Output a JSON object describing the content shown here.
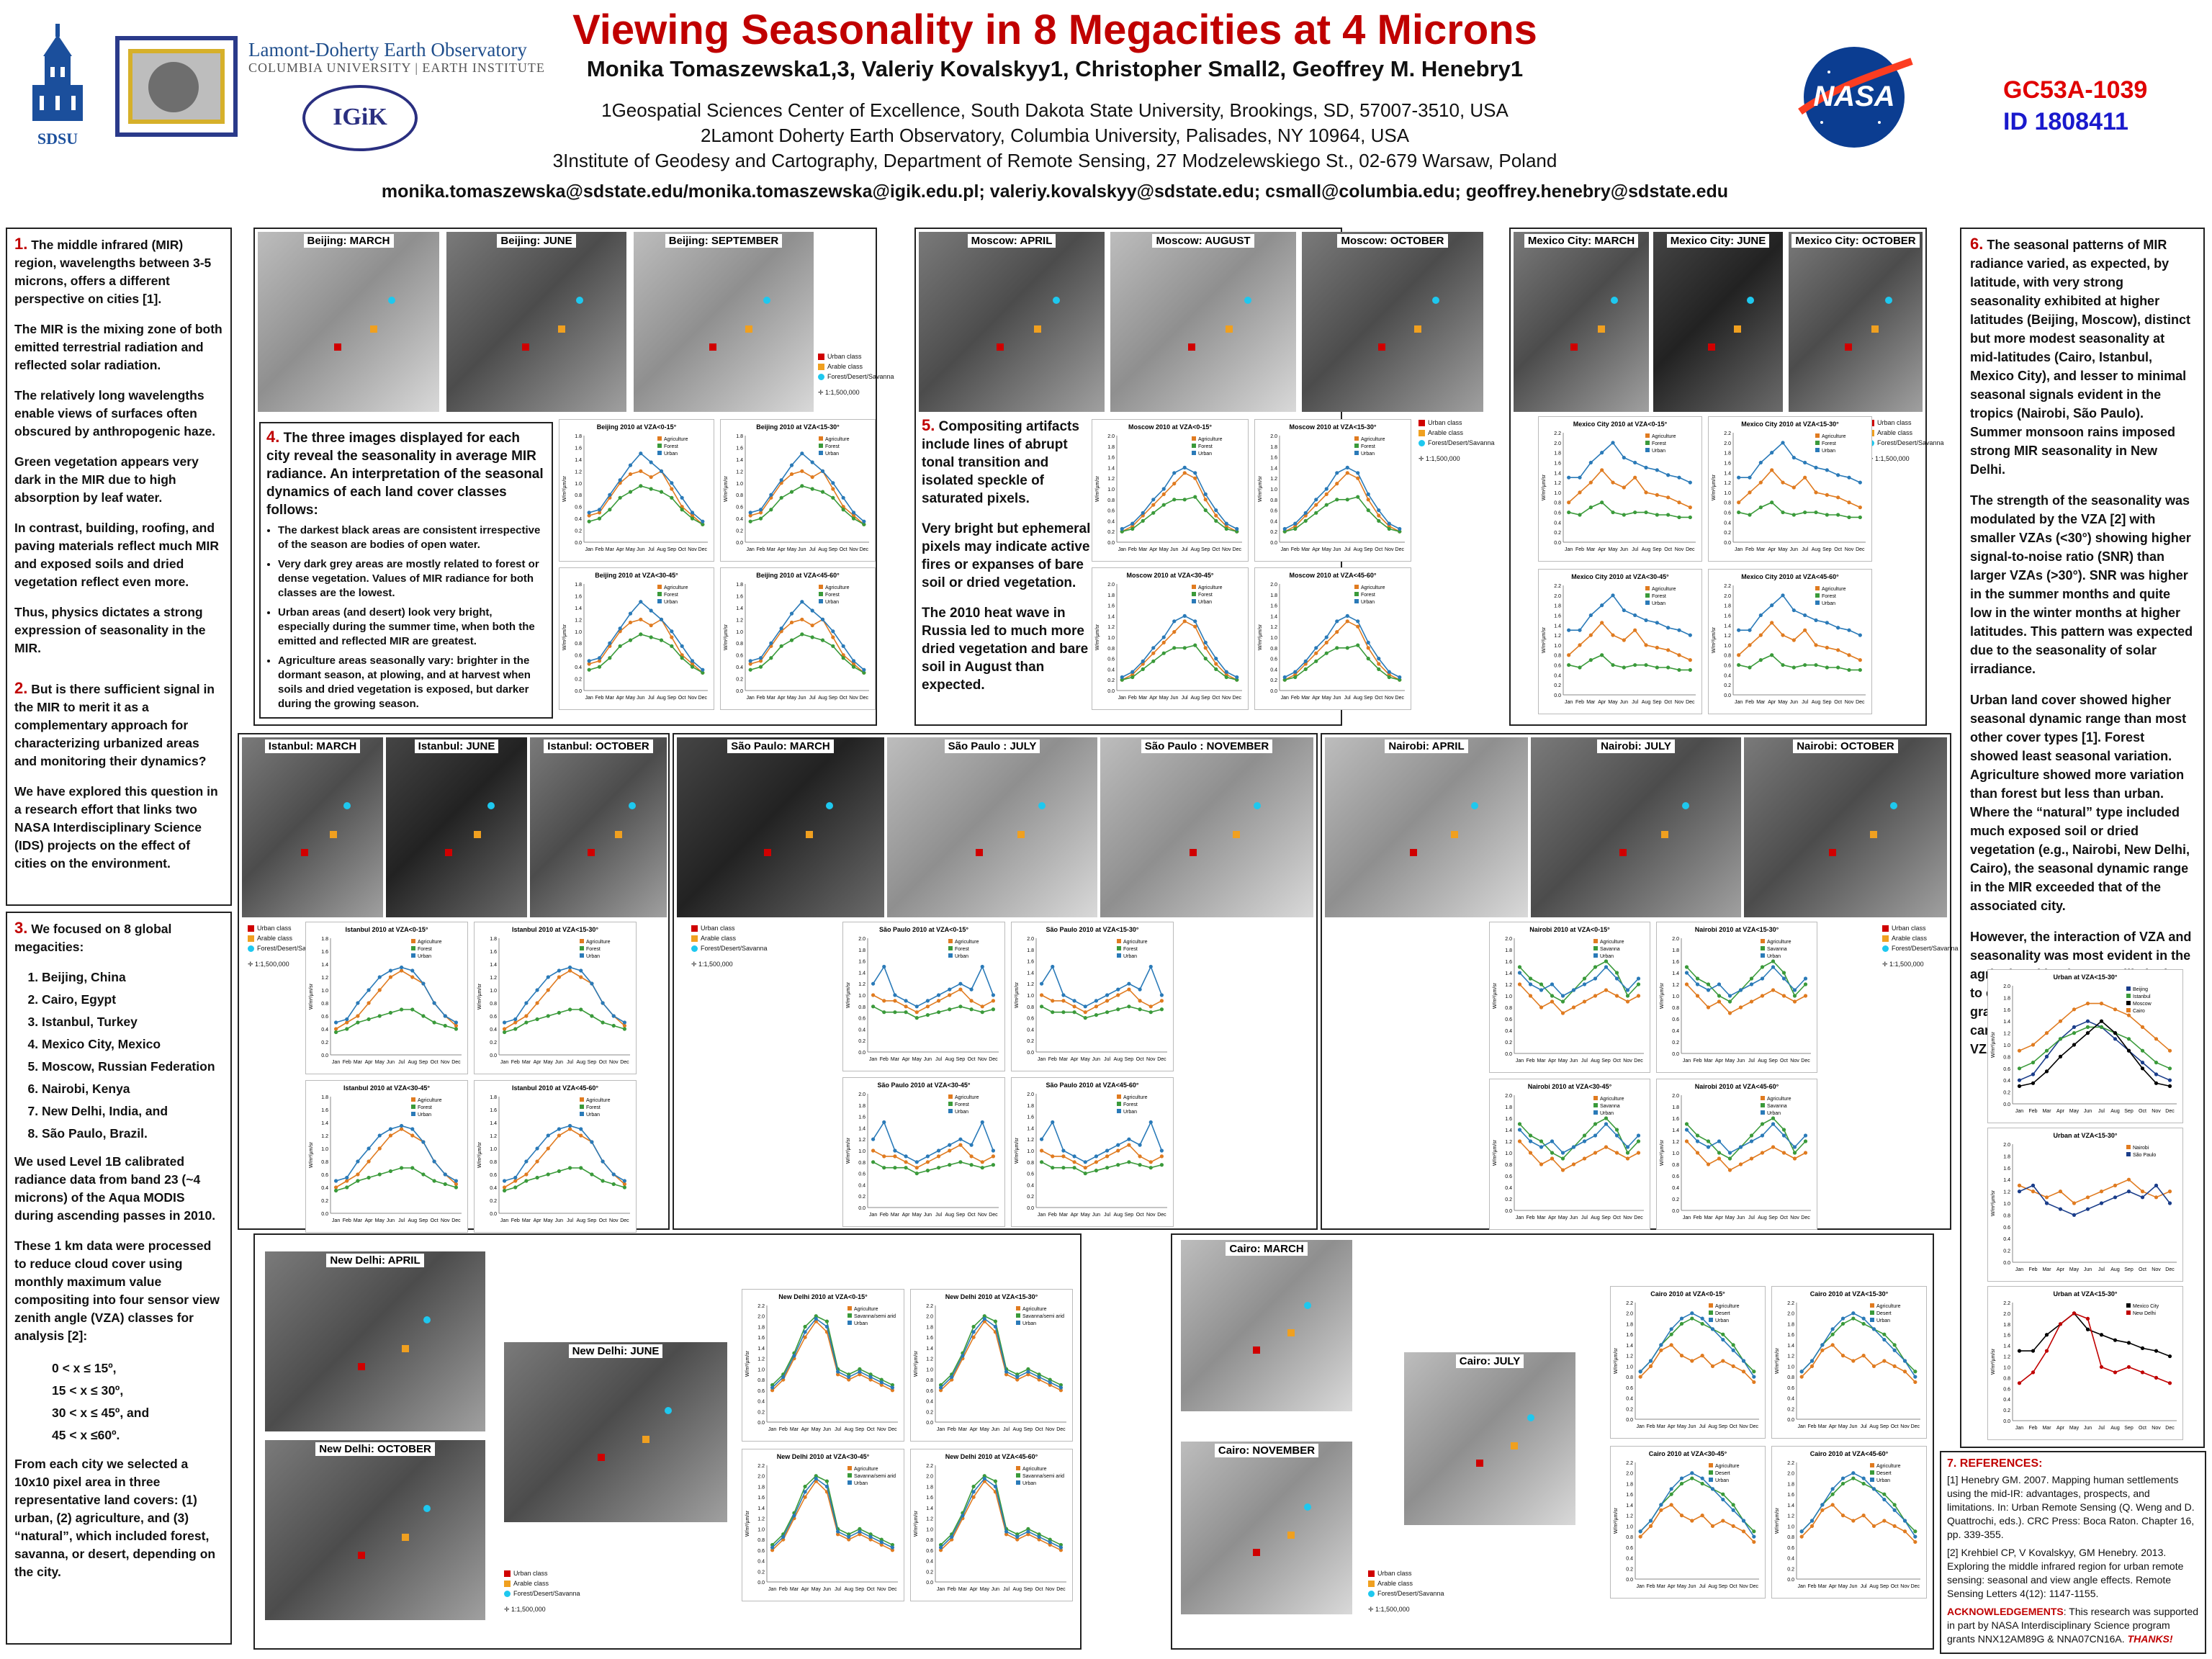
{
  "header": {
    "title": "Viewing Seasonality in 8 Megacities at 4 Microns",
    "authors": "Monika Tomaszewska1,3, Valeriy Kovalskyy1, Christopher Small2, Geoffrey M. Henebry1",
    "affil1": "1Geospatial Sciences Center of Excellence, South Dakota State University, Brookings, SD, 57007-3510, USA",
    "affil2": "2Lamont Doherty Earth Observatory, Columbia University, Palisades, NY 10964, USA",
    "affil3": "3Institute of Geodesy and Cartography, Department of Remote Sensing, 27 Modzelewskiego St., 02-679 Warsaw, Poland",
    "emails": "monika.tomaszewska@sdstate.edu/monika.tomaszewska@igik.edu.pl; valeriy.kovalskyy@sdstate.edu; csmall@columbia.edu; geoffrey.henebry@sdstate.edu",
    "code": "GC53A-1039",
    "id": "ID 1808411",
    "logos": {
      "sdsu": "SDSU",
      "lamont": "Lamont-Doherty Earth Observatory",
      "columbia": "COLUMBIA UNIVERSITY | EARTH INSTITUTE",
      "igik": "IGiK",
      "nasa": "NASA"
    }
  },
  "left": {
    "s1": [
      "The middle infrared (MIR) region, wavelengths between 3-5 microns, offers a different perspective on cities [1].",
      "The MIR is the mixing zone of both emitted terrestrial radiation and reflected solar radiation.",
      "The relatively long wavelengths enable views of surfaces often obscured by anthropogenic  haze.",
      "Green vegetation appears very dark in the MIR due to high absorption  by leaf water.",
      "In contrast, building, roofing, and paving materials reflect much MIR and exposed soils and dried vegetation reflect even more.",
      "Thus, physics dictates a strong expression of seasonality in the MIR."
    ],
    "s2": [
      "But is there sufficient signal in the MIR to merit it as a complementary approach for characterizing urbanized areas and monitoring their dynamics?",
      "We have explored this question in a research effort that links two NASA Interdisciplinary  Science (IDS) projects on the effect of cities on the environment."
    ],
    "s3_intro": "We focused on 8 global megacities:",
    "cities": [
      "Beijing, China",
      "Cairo, Egypt",
      "Istanbul, Turkey",
      "Mexico City, Mexico",
      "Moscow, Russian Federation",
      "Nairobi, Kenya",
      "New Delhi, India, and",
      "São Paulo, Brazil."
    ],
    "s3_p1": "We used Level 1B calibrated radiance data from band 23 (~4 microns) of the Aqua MODIS during ascending passes in 2010.",
    "s3_p2": "These 1 km data were processed to reduce cloud cover using monthly maximum value compositing  into four sensor view zenith angle (VZA) classes for analysis  [2]:",
    "vza": [
      "0 < x ≤ 15º,",
      "15 < x ≤ 30º,",
      "30 < x ≤ 45º, and",
      "45 < x ≤60º."
    ],
    "s3_p3": "From each city we selected a 10x10 pixel area in three representative land covers: (1) urban, (2) agriculture, and (3) “natural”,  which included forest, savanna, or desert, depending on the city."
  },
  "s4": {
    "intro": "The three images displayed for each city reveal the seasonality in average MIR radiance. An interpretation of the seasonal dynamics of each land cover classes follows:",
    "bullets": [
      "The darkest black areas are consistent irrespective of the season are bodies of open water.",
      "Very dark grey areas are mostly related to forest or dense vegetation. Values of MIR radiance for both classes are the lowest.",
      "Urban areas (and desert) look very bright, especially during the summer time, when both the emitted and reflected  MIR are greatest.",
      "Agriculture areas seasonally vary: brighter in the dormant season, at plowing, and at harvest when soils and dried vegetation is exposed, but darker during the growing season."
    ]
  },
  "s5": [
    "Compositing artifacts include lines of abrupt tonal transition and isolated speckle of saturated pixels.",
    "Very bright but ephemeral pixels may indicate active fires or expanses of bare soil or dried vegetation.",
    "The 2010 heat wave in Russia led to much more dried vegetation and bare soil in August than expected."
  ],
  "s6": [
    "The seasonal patterns of MIR radiance varied, as expected, by latitude, with very strong seasonality exhibited at higher latitudes (Beijing, Moscow), distinct but more modest seasonality at mid-latitudes (Cairo, Istanbul, Mexico City), and lesser to minimal seasonal signals evident in the tropics (Nairobi, São Paulo). Summer monsoon rains imposed strong MIR seasonality in New Delhi.",
    "The strength of the seasonality was modulated by the VZA [2] with smaller VZAs (<30°) showing higher signal-to-noise ratio (SNR) than larger VZAs (>30°). SNR was higher in the summer months and quite low in the winter months at higher latitudes. This pattern was expected due to the seasonality of solar irradiance.",
    "Urban land cover showed higher seasonal dynamic range than most other cover types [1]. Forest  showed least seasonal variation. Agriculture showed more variation than forest but less than urban. Where the “natural” type included much exposed soil or dried vegetation (e.g., Nairobi, New Delhi, Cairo), the seasonal dynamic range in the MIR exceeded that of the associated city.",
    "However, the interaction of VZA and seasonality was most evident in the agricultural land covers, likely due to exposed cropland soils being gradually covered by the growing canopy when viewed at higher VZAs."
  ],
  "refs": {
    "head": "7. REFERENCES:",
    "r1": "[1] Henebry GM. 2007. Mapping human  settlements using the mid-IR: advantages, prospects, and limitations. In: Urban Remote Sensing (Q. Weng and D. Quattrochi, eds.). CRC Press: Boca Raton. Chapter 16, pp. 339-355.",
    "r2": "[2] Krehbiel CP, V Kovalskyy, GM Henebry. 2013. Exploring the middle infrared region for urban remote sensing: seasonal and view angle effects. Remote Sensing  Letters 4(12): 1147-1155.",
    "ack_head": "ACKNOWLEDGEMENTS",
    "ack": ": This research was supported in part by NASA Interdisciplinary Science program grants NNX12AM89G & NNA07CN16A.",
    "thanks": "THANKS!"
  },
  "images": {
    "beijing": [
      "Beijing: MARCH",
      "Beijing: JUNE",
      "Beijing: SEPTEMBER"
    ],
    "moscow": [
      "Moscow: APRIL",
      "Moscow: AUGUST",
      "Moscow: OCTOBER"
    ],
    "mexico": [
      "Mexico City: MARCH",
      "Mexico City: JUNE",
      "Mexico City: OCTOBER"
    ],
    "istanbul": [
      "Istanbul: MARCH",
      "Istanbul: JUNE",
      "Istanbul: OCTOBER"
    ],
    "saopaulo": [
      "São Paulo: MARCH",
      "São Paulo : JULY",
      "São Paulo : NOVEMBER"
    ],
    "nairobi": [
      "Nairobi: APRIL",
      "Nairobi: JULY",
      "Nairobi: OCTOBER"
    ],
    "delhi": [
      "New Delhi: APRIL",
      "New Delhi: JUNE",
      "New Delhi: OCTOBER"
    ],
    "cairo": [
      "Cairo: MARCH",
      "Cairo: JULY",
      "Cairo: NOVEMBER"
    ]
  },
  "map_legend": [
    "Urban class",
    "Arable class",
    "Forest/Desert/Savanna"
  ],
  "scale": "1:1,500,000",
  "colors": {
    "agriculture": "#e07b20",
    "natural": "#3a9a3a",
    "urban": "#2a7ab8",
    "red": "#c00000",
    "blue": "#1a1acc"
  },
  "chart_data": {
    "type": "line",
    "months": [
      "Jan",
      "Feb",
      "Mar",
      "Apr",
      "May",
      "Jun",
      "Jul",
      "Aug",
      "Sep",
      "Oct",
      "Nov",
      "Dec"
    ],
    "ylabel": "W/m²/µm/sr",
    "panels": {
      "beijing": {
        "titles": [
          "Beijing 2010 at VZA<0-15°",
          "Beijing 2010 at VZA<15-30°",
          "Beijing 2010 at VZA<30-45°",
          "Beijing 2010 at VZA<45-60°"
        ],
        "legend": [
          "Agriculture",
          "Forest",
          "Urban"
        ],
        "ylim": [
          0,
          1.8
        ],
        "series": [
          [
            0.45,
            0.5,
            0.75,
            1.0,
            1.15,
            1.2,
            1.1,
            1.2,
            0.9,
            0.6,
            0.45,
            0.3
          ],
          [
            0.35,
            0.4,
            0.55,
            0.75,
            0.85,
            0.95,
            0.9,
            0.85,
            0.75,
            0.55,
            0.4,
            0.3
          ],
          [
            0.5,
            0.55,
            0.8,
            1.05,
            1.3,
            1.5,
            1.35,
            1.2,
            1.0,
            0.75,
            0.5,
            0.35
          ]
        ]
      },
      "moscow": {
        "titles": [
          "Moscow 2010 at VZA<0-15°",
          "Moscow 2010 at VZA<15-30°",
          "Moscow 2010 at VZA<30-45°",
          "Moscow 2010 at VZA<45-60°"
        ],
        "legend": [
          "Agriculture",
          "Forest",
          "Urban"
        ],
        "ylim": [
          0,
          2.0
        ],
        "series": [
          [
            0.2,
            0.3,
            0.5,
            0.7,
            0.9,
            1.1,
            1.3,
            1.2,
            0.8,
            0.5,
            0.3,
            0.2
          ],
          [
            0.2,
            0.25,
            0.4,
            0.55,
            0.7,
            0.8,
            0.8,
            0.85,
            0.6,
            0.4,
            0.25,
            0.2
          ],
          [
            0.25,
            0.35,
            0.55,
            0.8,
            1.0,
            1.3,
            1.4,
            1.3,
            0.9,
            0.6,
            0.35,
            0.25
          ]
        ]
      },
      "mexico": {
        "titles": [
          "Mexico City 2010 at VZA<0-15°",
          "Mexico City 2010 at VZA<15-30°",
          "Mexico City 2010 at VZA<30-45°",
          "Mexico City 2010 at VZA<45-60°"
        ],
        "legend": [
          "Agriculture",
          "Forest",
          "Urban"
        ],
        "ylim": [
          0,
          2.2
        ],
        "series": [
          [
            0.8,
            1.0,
            1.2,
            1.45,
            1.2,
            1.1,
            1.3,
            1.0,
            0.95,
            0.9,
            0.8,
            0.7
          ],
          [
            0.6,
            0.55,
            0.7,
            0.8,
            0.6,
            0.55,
            0.6,
            0.6,
            0.55,
            0.55,
            0.5,
            0.5
          ],
          [
            1.3,
            1.3,
            1.6,
            1.8,
            2.0,
            1.7,
            1.6,
            1.5,
            1.45,
            1.35,
            1.3,
            1.2
          ]
        ]
      },
      "istanbul": {
        "titles": [
          "Istanbul 2010 at VZA<0-15°",
          "Istanbul 2010 at VZA<15-30°",
          "Istanbul 2010 at VZA<30-45°",
          "Istanbul 2010 at VZA<45-60°"
        ],
        "legend": [
          "Agriculture",
          "Forest",
          "Urban"
        ],
        "ylim": [
          0,
          1.8
        ],
        "series": [
          [
            0.4,
            0.5,
            0.6,
            0.8,
            1.0,
            1.2,
            1.3,
            1.2,
            1.1,
            0.8,
            0.6,
            0.45
          ],
          [
            0.35,
            0.4,
            0.5,
            0.55,
            0.6,
            0.65,
            0.7,
            0.7,
            0.6,
            0.5,
            0.45,
            0.4
          ],
          [
            0.5,
            0.55,
            0.8,
            1.0,
            1.2,
            1.3,
            1.35,
            1.3,
            1.1,
            0.8,
            0.6,
            0.5
          ]
        ]
      },
      "saopaulo": {
        "titles": [
          "São Paulo 2010 at VZA<0-15°",
          "São Paulo 2010 at VZA<15-30°",
          "São Paulo 2010 at VZA<30-45°",
          "São Paulo 2010 at VZA<45-60°"
        ],
        "legend": [
          "Agriculture",
          "Forest",
          "Urban"
        ],
        "ylim": [
          0,
          2.0
        ],
        "series": [
          [
            1.0,
            0.9,
            0.9,
            0.8,
            0.7,
            0.8,
            0.9,
            1.0,
            1.1,
            0.9,
            0.8,
            0.9
          ],
          [
            0.8,
            0.7,
            0.7,
            0.7,
            0.6,
            0.65,
            0.7,
            0.75,
            0.8,
            0.75,
            0.7,
            0.75
          ],
          [
            1.2,
            1.5,
            1.0,
            0.9,
            0.8,
            0.9,
            1.0,
            1.1,
            1.2,
            1.1,
            1.5,
            1.0
          ]
        ]
      },
      "nairobi": {
        "titles": [
          "Nairobi 2010 at VZA<0-15°",
          "Nairobi 2010 at VZA<15-30°",
          "Nairobi 2010 at VZA<30-45°",
          "Nairobi 2010 at VZA<45-60°"
        ],
        "legend": [
          "Agriculture",
          "Savanna",
          "Urban"
        ],
        "ylim": [
          0,
          2.0
        ],
        "series": [
          [
            1.2,
            1.0,
            0.8,
            0.9,
            0.7,
            0.8,
            0.9,
            1.0,
            1.1,
            1.0,
            0.9,
            1.0
          ],
          [
            1.5,
            1.3,
            1.2,
            1.0,
            0.9,
            1.1,
            1.3,
            1.5,
            1.6,
            1.4,
            1.0,
            1.2
          ],
          [
            1.4,
            1.2,
            1.1,
            1.2,
            1.0,
            1.1,
            1.2,
            1.3,
            1.5,
            1.3,
            1.1,
            1.3
          ]
        ]
      },
      "delhi": {
        "titles": [
          "New Delhi 2010 at VZA<0-15°",
          "New Delhi 2010 at VZA<15-30°",
          "New Delhi 2010 at VZA<30-45°",
          "New Delhi 2010 at VZA<45-60°"
        ],
        "legend": [
          "Agriculture",
          "Savanna/semi arid",
          "Urban"
        ],
        "ylim": [
          0,
          2.2
        ],
        "series": [
          [
            0.6,
            0.8,
            1.2,
            1.6,
            1.9,
            1.7,
            0.9,
            0.8,
            0.9,
            0.8,
            0.7,
            0.6
          ],
          [
            0.7,
            0.9,
            1.3,
            1.8,
            2.0,
            1.9,
            1.0,
            0.9,
            1.0,
            0.9,
            0.8,
            0.7
          ],
          [
            0.65,
            0.85,
            1.25,
            1.7,
            1.95,
            1.8,
            0.95,
            0.85,
            0.95,
            0.85,
            0.75,
            0.65
          ]
        ]
      },
      "cairo": {
        "titles": [
          "Cairo 2010 at VZA<0-15°",
          "Cairo 2010 at VZA<15-30°",
          "Cairo 2010 at VZA<30-45°",
          "Cairo 2010 at VZA<45-60°"
        ],
        "legend": [
          "Agriculture",
          "Desert",
          "Urban"
        ],
        "ylim": [
          0,
          2.2
        ],
        "series": [
          [
            0.8,
            1.0,
            1.3,
            1.4,
            1.2,
            1.1,
            1.2,
            1.0,
            1.1,
            1.0,
            0.9,
            0.7
          ],
          [
            0.9,
            1.1,
            1.4,
            1.6,
            1.8,
            1.9,
            1.8,
            1.7,
            1.6,
            1.4,
            1.1,
            0.9
          ],
          [
            0.9,
            1.1,
            1.4,
            1.7,
            1.9,
            2.0,
            1.9,
            1.7,
            1.5,
            1.3,
            1.1,
            0.8
          ]
        ]
      }
    },
    "summary": [
      {
        "title": "Urban at VZA<15-30°",
        "legend": [
          "Beijing",
          "Istanbul",
          "Moscow",
          "Cairo"
        ],
        "ylim": [
          0,
          2.0
        ],
        "series": [
          [
            0.4,
            0.5,
            0.8,
            1.1,
            1.3,
            1.4,
            1.3,
            1.1,
            0.9,
            0.7,
            0.5,
            0.4
          ],
          [
            0.6,
            0.7,
            0.9,
            1.1,
            1.2,
            1.3,
            1.3,
            1.2,
            1.1,
            0.9,
            0.7,
            0.6
          ],
          [
            0.3,
            0.35,
            0.55,
            0.8,
            1.0,
            1.2,
            1.4,
            1.2,
            0.9,
            0.6,
            0.35,
            0.3
          ],
          [
            0.9,
            1.0,
            1.2,
            1.4,
            1.6,
            1.7,
            1.7,
            1.6,
            1.5,
            1.3,
            1.1,
            0.9
          ]
        ]
      },
      {
        "title": "Urban at VZA<15-30°",
        "legend": [
          "Nairobi",
          "São Paulo"
        ],
        "ylim": [
          0,
          2.0
        ],
        "series": [
          [
            1.3,
            1.2,
            1.1,
            1.2,
            1.0,
            1.1,
            1.2,
            1.3,
            1.4,
            1.2,
            1.1,
            1.2
          ],
          [
            1.2,
            1.3,
            1.0,
            0.9,
            0.8,
            0.9,
            1.0,
            1.1,
            1.2,
            1.1,
            1.3,
            1.0
          ]
        ]
      },
      {
        "title": "Urban at VZA<15-30°",
        "legend": [
          "Mexico City",
          "New Delhi"
        ],
        "ylim": [
          0,
          2.2
        ],
        "series": [
          [
            1.3,
            1.3,
            1.6,
            1.8,
            2.0,
            1.7,
            1.6,
            1.5,
            1.45,
            1.35,
            1.3,
            1.2
          ],
          [
            0.7,
            0.9,
            1.3,
            1.8,
            2.0,
            1.9,
            1.0,
            0.9,
            1.0,
            0.9,
            0.8,
            0.7
          ]
        ]
      }
    ]
  }
}
